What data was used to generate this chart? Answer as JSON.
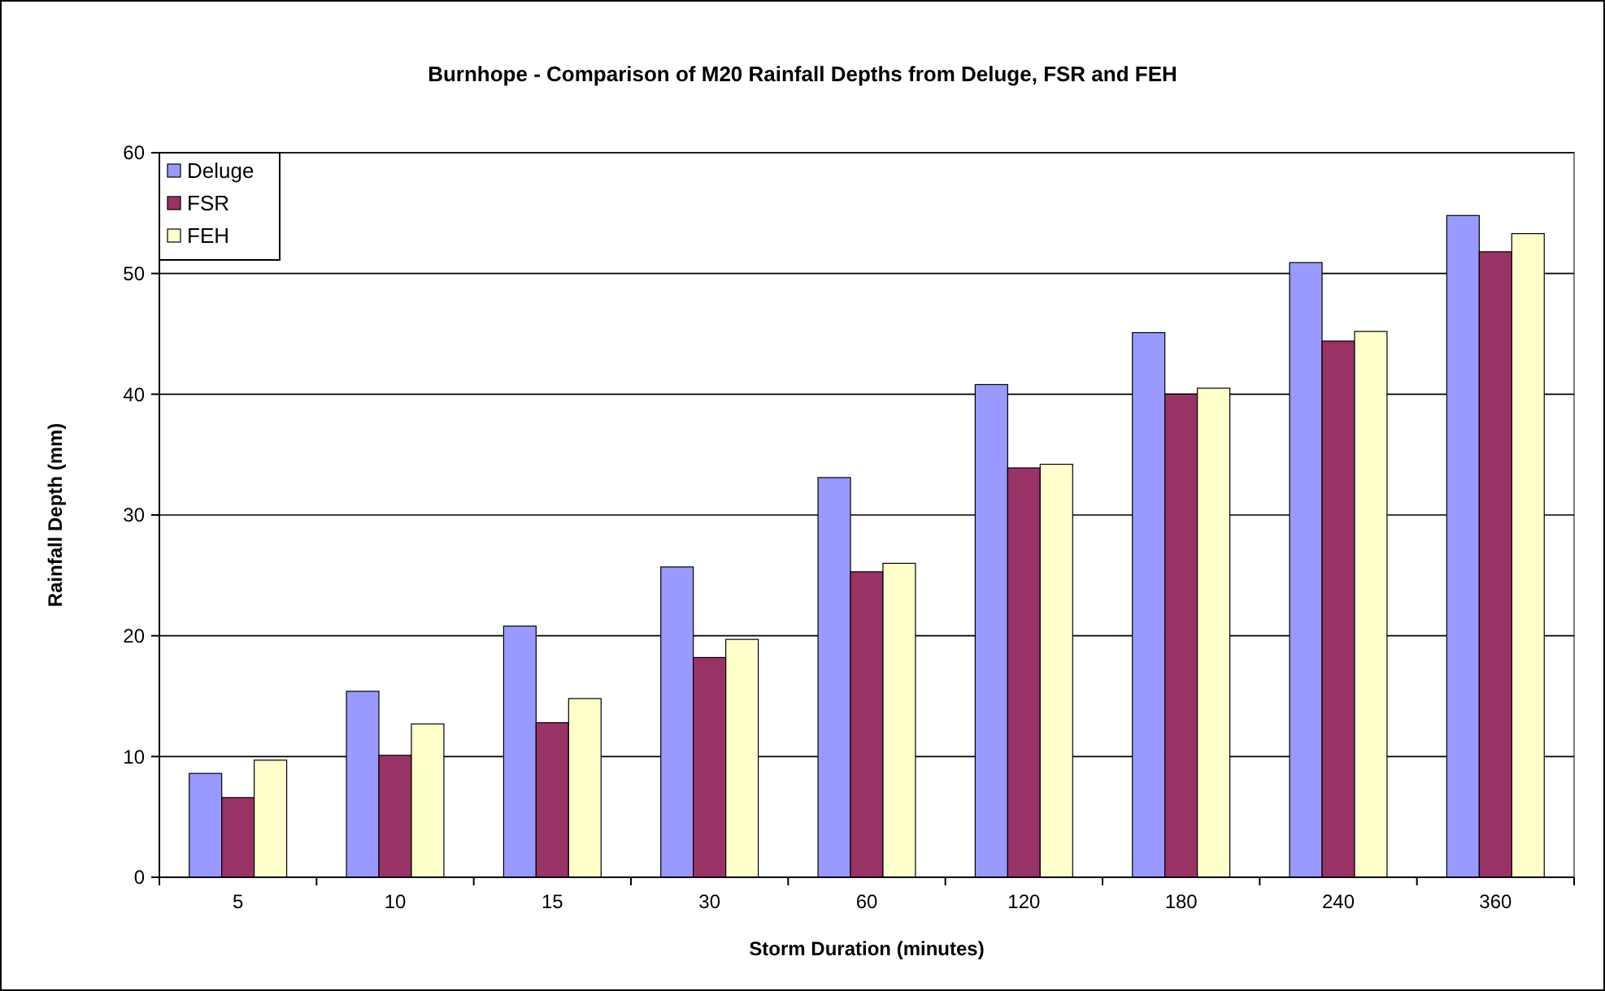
{
  "chart_data": {
    "type": "bar",
    "title": "Burnhope - Comparison of M20 Rainfall Depths from Deluge, FSR and FEH",
    "xlabel": "Storm Duration (minutes)",
    "ylabel": "Rainfall Depth (mm)",
    "categories": [
      "5",
      "10",
      "15",
      "30",
      "60",
      "120",
      "180",
      "240",
      "360"
    ],
    "series": [
      {
        "name": "Deluge",
        "color": "#9999ff",
        "values": [
          8.6,
          15.4,
          20.8,
          25.7,
          33.1,
          40.8,
          45.1,
          50.9,
          54.8
        ]
      },
      {
        "name": "FSR",
        "color": "#993366",
        "values": [
          6.6,
          10.1,
          12.8,
          18.2,
          25.3,
          33.9,
          40.0,
          44.4,
          51.8
        ]
      },
      {
        "name": "FEH",
        "color": "#ffffcc",
        "values": [
          9.7,
          12.7,
          14.8,
          19.7,
          26.0,
          34.2,
          40.5,
          45.2,
          53.3
        ]
      }
    ],
    "ylim": [
      0,
      60
    ],
    "yticks": [
      0,
      10,
      20,
      30,
      40,
      50,
      60
    ],
    "grid": "y",
    "legend": "top left"
  }
}
